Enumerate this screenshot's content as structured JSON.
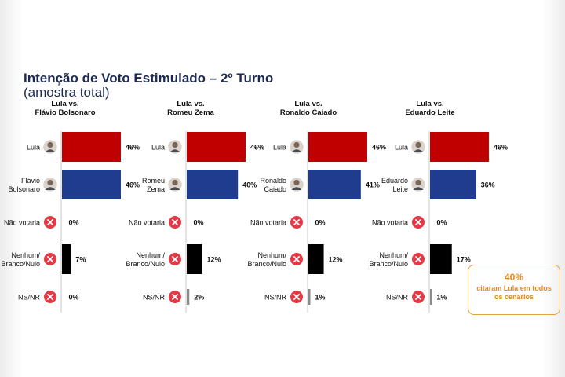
{
  "title": "Intenção de Voto Estimulado – 2º Turno",
  "subtitle": "(amostra total)",
  "colors": {
    "lula": "#c00000",
    "opponent": "#1f3c8f",
    "nenhum": "#000000",
    "nsnr": "#8a8a8a",
    "icon_x": "#e63946",
    "callout": "#e08a1e"
  },
  "callout": {
    "value": "40%",
    "text": "citaram Lula em todos os cenários"
  },
  "chart_data": [
    {
      "type": "bar",
      "title": "Lula vs. Flávio Bolsonaro",
      "categories": [
        "Lula",
        "Flávio Bolsonaro",
        "Não votaria",
        "Nenhum/ Branco/Nulo",
        "NS/NR"
      ],
      "values": [
        46,
        46,
        0,
        7,
        0
      ],
      "value_labels": [
        "46%",
        "46%",
        "0%",
        "7%",
        "0%"
      ]
    },
    {
      "type": "bar",
      "title": "Lula vs. Romeu Zema",
      "categories": [
        "Lula",
        "Romeu Zema",
        "Não votaria",
        "Nenhum/ Branco/Nulo",
        "NS/NR"
      ],
      "values": [
        46,
        40,
        0,
        12,
        2
      ],
      "value_labels": [
        "46%",
        "40%",
        "0%",
        "12%",
        "2%"
      ]
    },
    {
      "type": "bar",
      "title": "Lula vs. Ronaldo Caiado",
      "categories": [
        "Lula",
        "Ronaldo Caiado",
        "Não votaria",
        "Nenhum/ Branco/Nulo",
        "NS/NR"
      ],
      "values": [
        46,
        41,
        0,
        12,
        1
      ],
      "value_labels": [
        "46%",
        "41%",
        "0%",
        "12%",
        "1%"
      ]
    },
    {
      "type": "bar",
      "title": "Lula vs. Eduardo Leite",
      "categories": [
        "Lula",
        "Eduardo Leite",
        "Não votaria",
        "Nenhum/ Branco/Nulo",
        "NS/NR"
      ],
      "values": [
        46,
        36,
        0,
        17,
        1
      ],
      "value_labels": [
        "46%",
        "36%",
        "0%",
        "17%",
        "1%"
      ]
    }
  ]
}
